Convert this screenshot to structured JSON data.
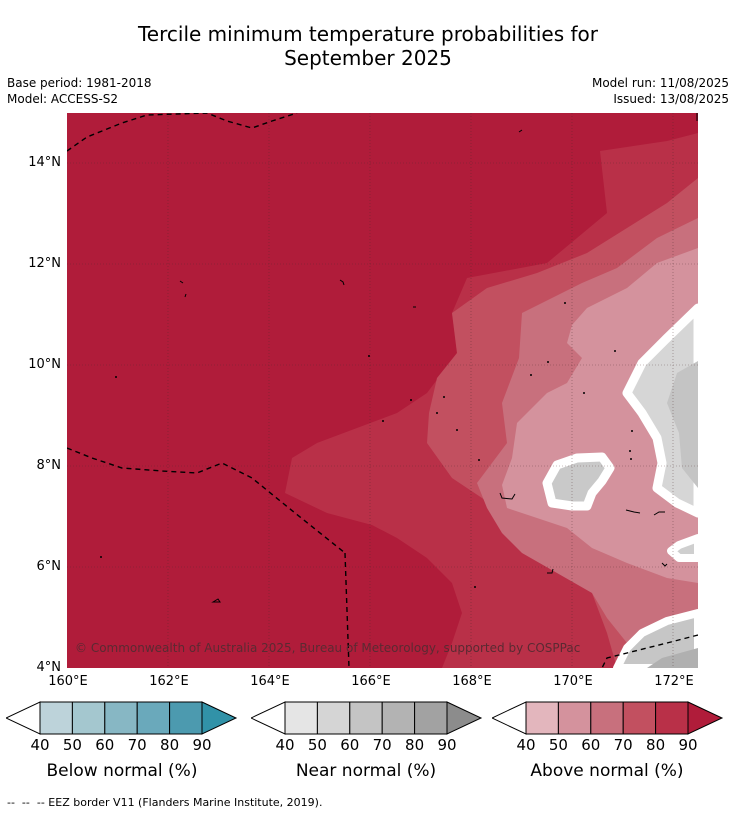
{
  "title_line1": "Tercile minimum temperature probabilities for",
  "title_line2": "September 2025",
  "meta": {
    "base_period": "Base period: 1981-2018",
    "model": "Model: ACCESS-S2",
    "model_run": "Model run: 11/08/2025",
    "issued": "Issued: 13/08/2025"
  },
  "map": {
    "lat_labels": [
      "14°N",
      "12°N",
      "10°N",
      "8°N",
      "6°N",
      "4°N"
    ],
    "lon_labels": [
      "160°E",
      "162°E",
      "164°E",
      "166°E",
      "168°E",
      "170°E",
      "172°E"
    ],
    "copyright": "© Commonwealth of Australia 2025, Bureau of Meteorology, supported by COSPPac"
  },
  "colorbars": [
    {
      "label": "Below normal (%)",
      "ticks": [
        "40",
        "50",
        "60",
        "70",
        "80",
        "90"
      ],
      "colors": [
        "#ffffff",
        "#bdd3da",
        "#a4c7cf",
        "#87b7c4",
        "#6aa9bb",
        "#4c9aaf",
        "#3192a8"
      ]
    },
    {
      "label": "Near normal (%)",
      "ticks": [
        "40",
        "50",
        "60",
        "70",
        "80",
        "90"
      ],
      "colors": [
        "#ffffff",
        "#e5e5e5",
        "#d5d5d5",
        "#c4c4c4",
        "#b3b3b3",
        "#a2a2a2",
        "#8c8c8c"
      ]
    },
    {
      "label": "Above normal (%)",
      "ticks": [
        "40",
        "50",
        "60",
        "70",
        "80",
        "90"
      ],
      "colors": [
        "#ffffff",
        "#e3b6bd",
        "#d4929d",
        "#c8707d",
        "#c25060",
        "#b93048",
        "#b01c3a"
      ]
    }
  ],
  "footer": "--  --  -- EEZ border V11 (Flanders Marine Institute, 2019)."
}
